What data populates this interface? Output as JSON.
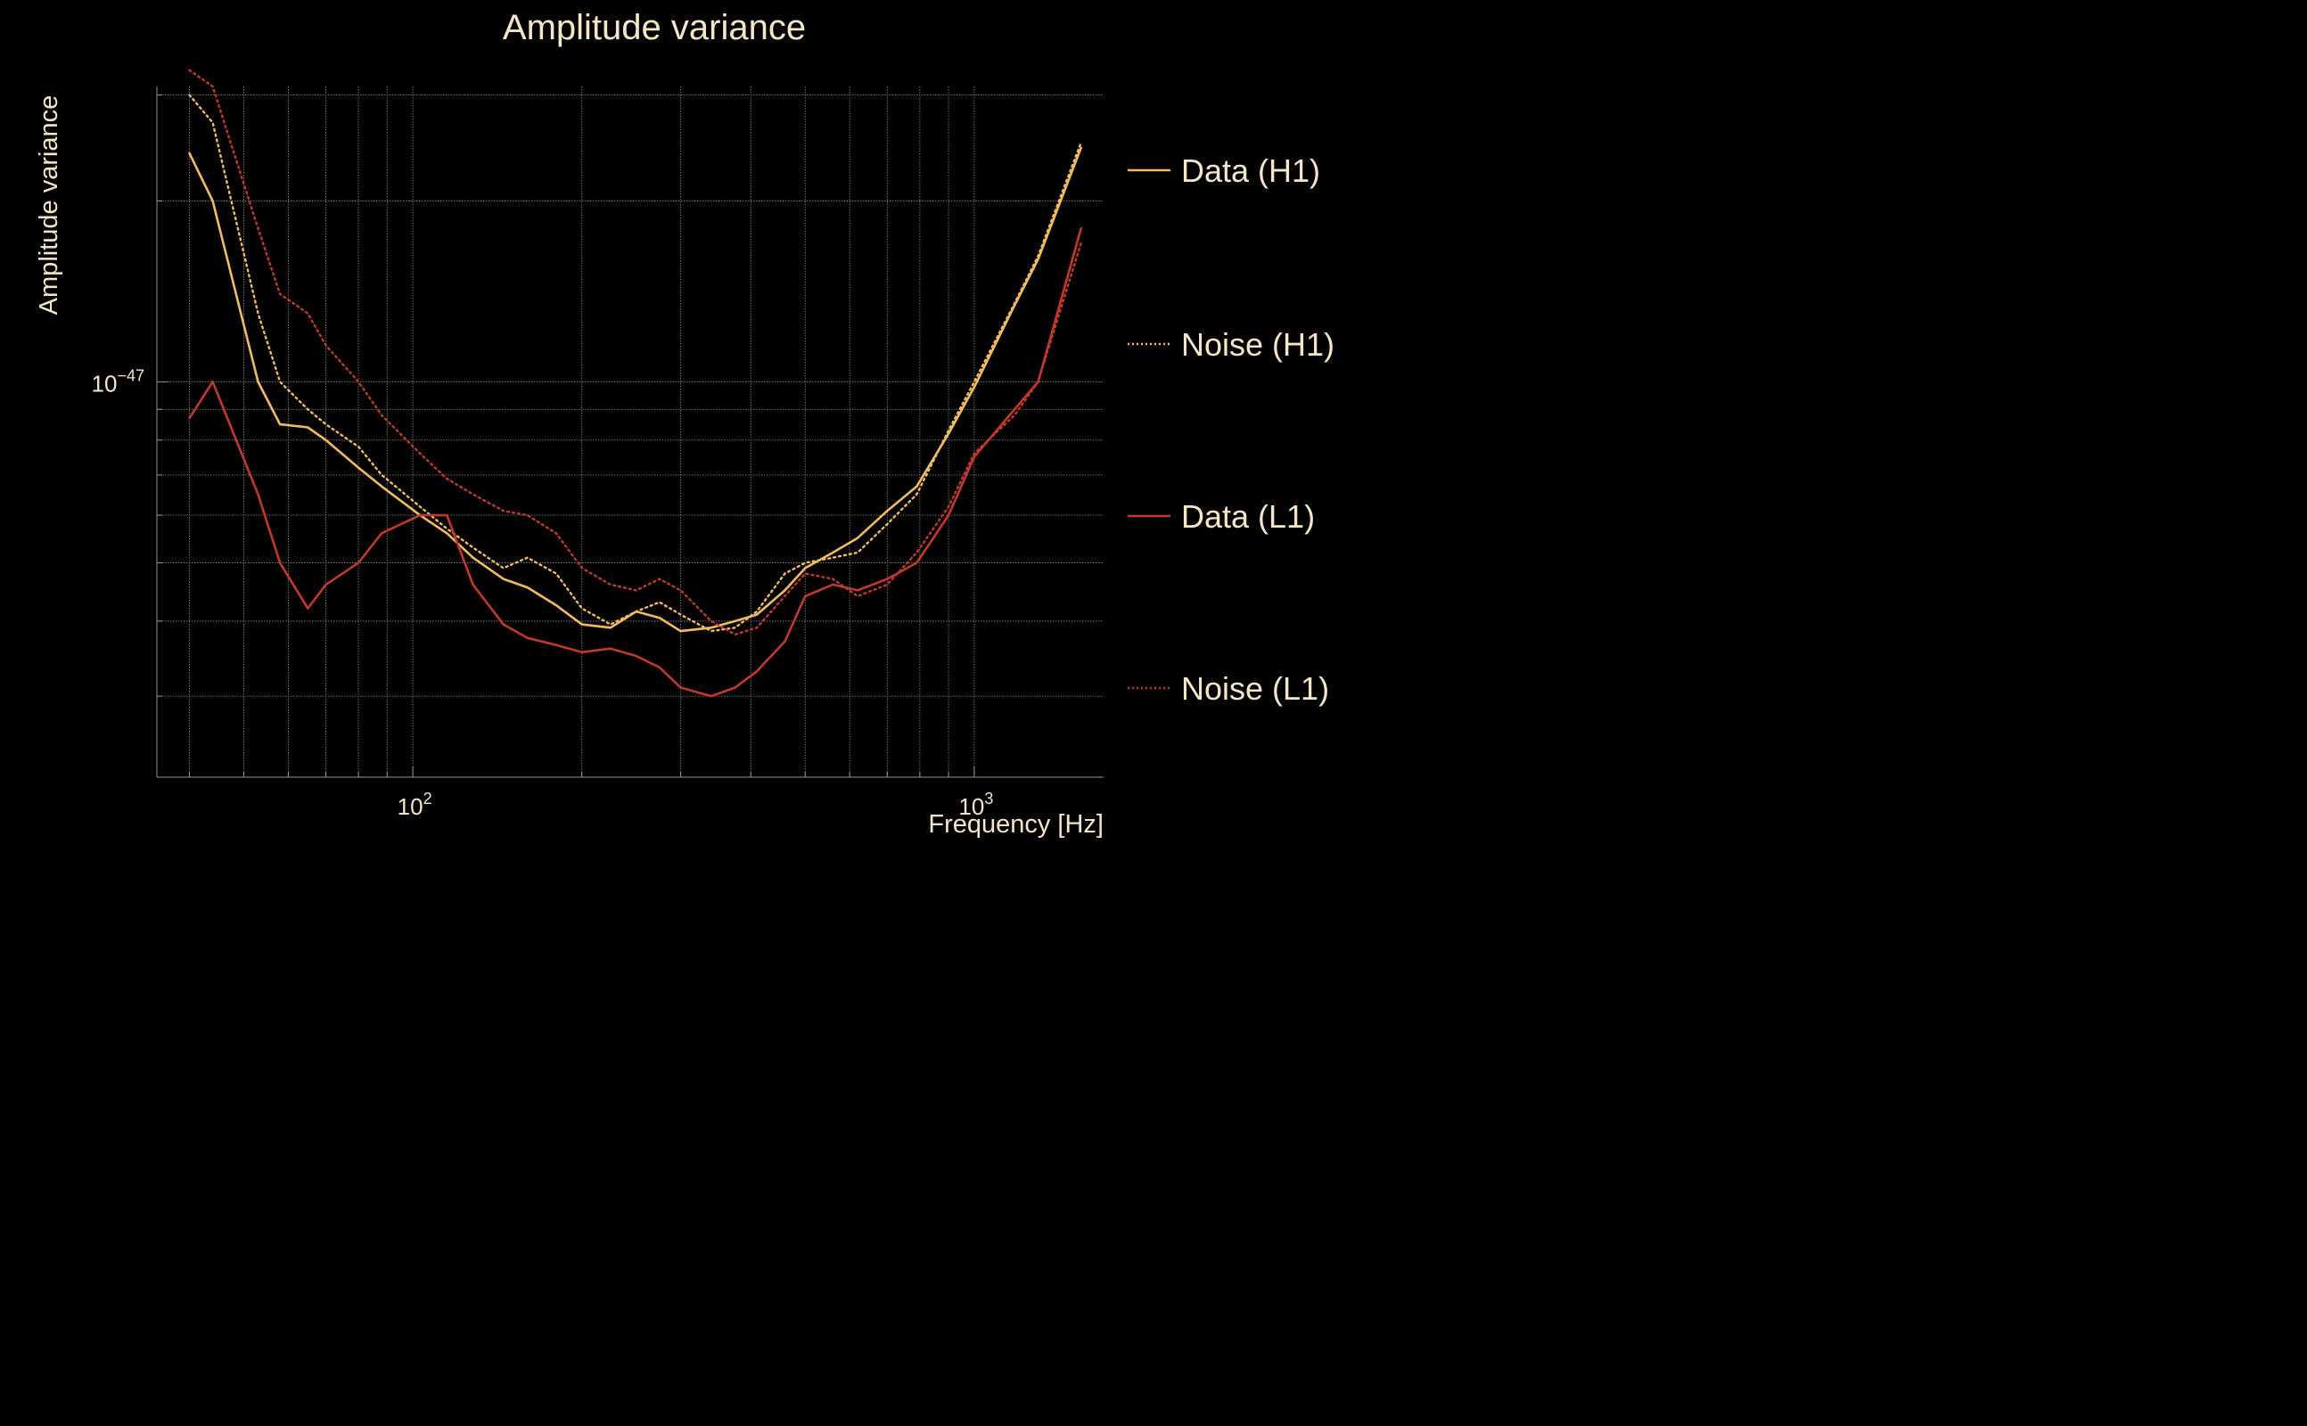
{
  "chart_data": {
    "type": "line",
    "title": "Amplitude variance",
    "xlabel": "Frequency [Hz]",
    "ylabel": "Amplitude variance",
    "xscale": "log",
    "yscale": "log",
    "xlim": [
      35,
      1700
    ],
    "ylim": [
      2.2e-48,
      3.1e-47
    ],
    "grid": true,
    "legend": "right",
    "x_ticks": [
      {
        "value": 100,
        "base": "10",
        "exp": "2"
      },
      {
        "value": 1000,
        "base": "10",
        "exp": "3"
      }
    ],
    "y_ticks": [
      {
        "value": 1e-47,
        "base": "10",
        "exp": "−47"
      }
    ],
    "x": [
      40,
      44,
      53,
      58,
      65,
      70,
      80,
      88,
      103,
      115,
      128,
      145,
      160,
      180,
      200,
      225,
      250,
      275,
      300,
      340,
      375,
      410,
      460,
      500,
      560,
      620,
      700,
      790,
      900,
      1000,
      1180,
      1300,
      1550
    ],
    "series": [
      {
        "name": "Data (H1)",
        "color": "#f0bc5e",
        "style": "solid",
        "values": [
          2.4e-47,
          2e-47,
          1e-47,
          8.5e-48,
          8.4e-48,
          8e-48,
          7.2e-48,
          6.7e-48,
          6e-48,
          5.6e-48,
          5.1e-48,
          4.7e-48,
          4.55e-48,
          4.25e-48,
          3.95e-48,
          3.9e-48,
          4.15e-48,
          4.05e-48,
          3.85e-48,
          3.9e-48,
          4e-48,
          4.1e-48,
          4.5e-48,
          4.9e-48,
          5.2e-48,
          5.5e-48,
          6.1e-48,
          6.7e-48,
          8.2e-48,
          9.8e-48,
          1.34e-47,
          1.6e-47,
          2.45e-47
        ]
      },
      {
        "name": "Noise (H1)",
        "color": "#f0bc5e",
        "style": "dotted",
        "values": [
          3e-47,
          2.7e-47,
          1.3e-47,
          1e-47,
          9e-48,
          8.5e-48,
          7.8e-48,
          7e-48,
          6.2e-48,
          5.7e-48,
          5.3e-48,
          4.9e-48,
          5.1e-48,
          4.8e-48,
          4.2e-48,
          3.95e-48,
          4.15e-48,
          4.3e-48,
          4.1e-48,
          3.85e-48,
          3.9e-48,
          4.15e-48,
          4.8e-48,
          5e-48,
          5.1e-48,
          5.2e-48,
          5.8e-48,
          6.5e-48,
          8.3e-48,
          1e-47,
          1.35e-47,
          1.62e-47,
          2.5e-47
        ]
      },
      {
        "name": "Data (L1)",
        "color": "#c0392b",
        "style": "solid",
        "values": [
          8.7e-48,
          1e-47,
          6.5e-48,
          5e-48,
          4.2e-48,
          4.6e-48,
          5e-48,
          5.6e-48,
          6e-48,
          6e-48,
          4.6e-48,
          3.95e-48,
          3.75e-48,
          3.65e-48,
          3.55e-48,
          3.6e-48,
          3.5e-48,
          3.35e-48,
          3.1e-48,
          3e-48,
          3.1e-48,
          3.3e-48,
          3.7e-48,
          4.4e-48,
          4.6e-48,
          4.5e-48,
          4.7e-48,
          5e-48,
          6e-48,
          7.5e-48,
          9e-48,
          1e-47,
          1.8e-47
        ]
      },
      {
        "name": "Noise (L1)",
        "color": "#c0392b",
        "style": "dotted",
        "values": [
          3.3e-47,
          3.1e-47,
          1.8e-47,
          1.4e-47,
          1.3e-47,
          1.15e-47,
          1e-47,
          8.8e-48,
          7.6e-48,
          6.9e-48,
          6.5e-48,
          6.1e-48,
          6e-48,
          5.6e-48,
          4.9e-48,
          4.6e-48,
          4.5e-48,
          4.7e-48,
          4.5e-48,
          4e-48,
          3.8e-48,
          3.9e-48,
          4.4e-48,
          4.8e-48,
          4.7e-48,
          4.4e-48,
          4.6e-48,
          5.2e-48,
          6.2e-48,
          7.6e-48,
          8.8e-48,
          1e-47,
          1.7e-47
        ]
      }
    ]
  }
}
